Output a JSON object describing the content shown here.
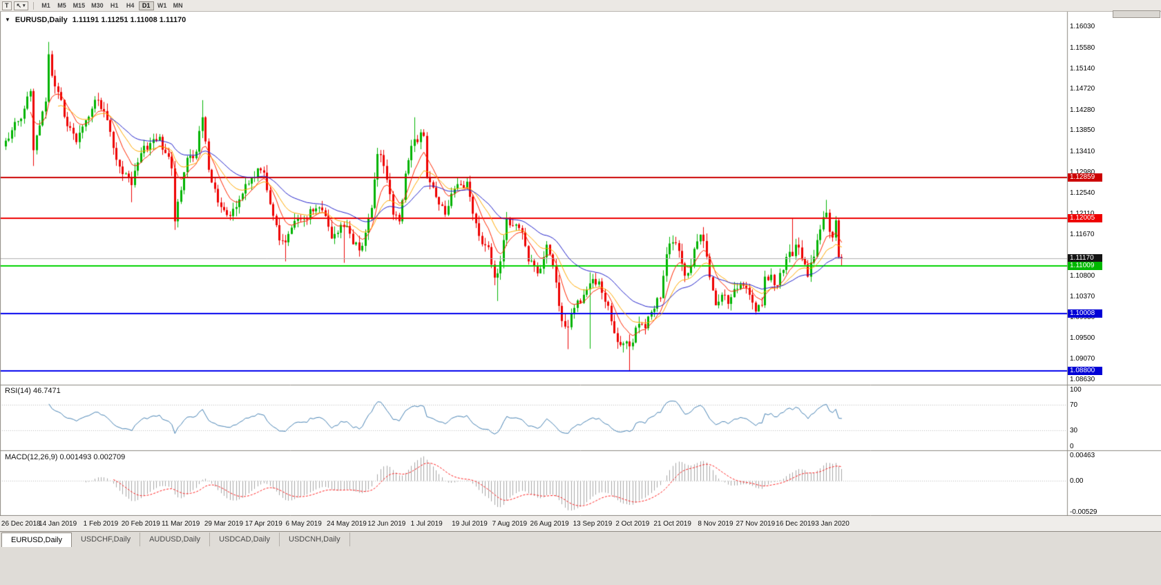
{
  "colors": {
    "window_bg": "#e7e4e0",
    "chart_bg": "#ffffff",
    "candle_up": "#00b300",
    "candle_down": "#ee0000",
    "ma_fast": "#ff2600",
    "ma_mid": "#ffaa00",
    "ma_slow": "#2222cc",
    "rsi_line": "#4682b4",
    "macd_hist": "#a6a6a6",
    "macd_signal": "#ff2020",
    "level_dotted": "#bdbdbd",
    "pane_border": "#8c8880",
    "bid_line": "#b0b0b0"
  },
  "toolbar": {
    "tool_t_label": "T",
    "cursor_icon": "↖",
    "dropdown_icon": "▾",
    "timeframes": [
      "M1",
      "M5",
      "M15",
      "M30",
      "H1",
      "H4",
      "D1",
      "W1",
      "MN"
    ],
    "active_timeframe": "D1"
  },
  "chart": {
    "title_marker_icon": "▼",
    "symbol_period": "EURUSD,Daily",
    "quotes": "1.11191 1.11251 1.11008 1.11170",
    "quote_open": "1.11191",
    "quote_high": "1.11251",
    "quote_low": "1.11008",
    "quote_close": "1.11170",
    "axis_labels": [
      "1.16030",
      "1.15580",
      "1.15140",
      "1.14720",
      "1.14280",
      "1.13850",
      "1.13410",
      "1.12980",
      "1.12540",
      "1.12110",
      "1.11670",
      "1.10800",
      "1.10370",
      "1.09930",
      "1.09500",
      "1.09070",
      "1.08630"
    ]
  },
  "chart_data": {
    "type": "candlestick",
    "symbol": "EURUSD",
    "timeframe": "Daily",
    "price_range": {
      "min": 1.0853,
      "max": 1.1626
    },
    "x_labels": [
      {
        "i": 5,
        "text": "26 Dec 2018"
      },
      {
        "i": 17,
        "text": "14 Jan 2019"
      },
      {
        "i": 31,
        "text": "1 Feb 2019"
      },
      {
        "i": 44,
        "text": "20 Feb 2019"
      },
      {
        "i": 57,
        "text": "11 Mar 2019"
      },
      {
        "i": 71,
        "text": "29 Mar 2019"
      },
      {
        "i": 84,
        "text": "17 Apr 2019"
      },
      {
        "i": 97,
        "text": "6 May 2019"
      },
      {
        "i": 111,
        "text": "24 May 2019"
      },
      {
        "i": 124,
        "text": "12 Jun 2019"
      },
      {
        "i": 137,
        "text": "1 Jul 2019"
      },
      {
        "i": 151,
        "text": "19 Jul 2019"
      },
      {
        "i": 164,
        "text": "7 Aug 2019"
      },
      {
        "i": 177,
        "text": "26 Aug 2019"
      },
      {
        "i": 191,
        "text": "13 Sep 2019"
      },
      {
        "i": 204,
        "text": "2 Oct 2019"
      },
      {
        "i": 217,
        "text": "21 Oct 2019"
      },
      {
        "i": 231,
        "text": "8 Nov 2019"
      },
      {
        "i": 244,
        "text": "27 Nov 2019"
      },
      {
        "i": 257,
        "text": "16 Dec 2019"
      },
      {
        "i": 269,
        "text": "3 Jan 2020"
      }
    ],
    "horizontal_lines": [
      {
        "price": 1.12859,
        "text": "1.12859",
        "line_color": "#cc0000",
        "badge_color": "#cc0000",
        "width": 2
      },
      {
        "price": 1.12005,
        "text": "1.12005",
        "line_color": "#ee0000",
        "badge_color": "#ee0000",
        "width": 2
      },
      {
        "price": 1.1117,
        "text": "1.11170",
        "line_color": "#b0b0b0",
        "badge_color": "#141414",
        "width": 1,
        "role": "bid"
      },
      {
        "price": 1.11009,
        "text": "1.11009",
        "line_color": "#00d400",
        "badge_color": "#00b800",
        "width": 2
      },
      {
        "price": 1.10008,
        "text": "1.10008",
        "line_color": "#0000ee",
        "badge_color": "#0000d6",
        "width": 2
      },
      {
        "price": 1.088,
        "text": "1.08800",
        "line_color": "#0000ee",
        "badge_color": "#0000d6",
        "width": 2
      }
    ],
    "candles": {
      "count": 273,
      "seed": 9,
      "noise": 0.0011,
      "wick": 0.0016,
      "anchors": [
        [
          0,
          1.1363
        ],
        [
          2,
          1.1385
        ],
        [
          4,
          1.1404
        ],
        [
          6,
          1.143
        ],
        [
          8,
          1.1467
        ],
        [
          9,
          1.1343
        ],
        [
          11,
          1.1395
        ],
        [
          13,
          1.1445
        ],
        [
          14,
          1.1544
        ],
        [
          15,
          1.1499
        ],
        [
          17,
          1.1465
        ],
        [
          19,
          1.1413
        ],
        [
          21,
          1.139
        ],
        [
          23,
          1.136
        ],
        [
          26,
          1.1406
        ],
        [
          28,
          1.143
        ],
        [
          30,
          1.1448
        ],
        [
          33,
          1.1406
        ],
        [
          36,
          1.1323
        ],
        [
          38,
          1.1293
        ],
        [
          41,
          1.127
        ],
        [
          42,
          1.13
        ],
        [
          44,
          1.1337
        ],
        [
          47,
          1.1358
        ],
        [
          50,
          1.1371
        ],
        [
          52,
          1.1337
        ],
        [
          54,
          1.1305
        ],
        [
          55,
          1.1194
        ],
        [
          56,
          1.1235
        ],
        [
          59,
          1.1327
        ],
        [
          62,
          1.134
        ],
        [
          64,
          1.1412
        ],
        [
          66,
          1.1302
        ],
        [
          68,
          1.1262
        ],
        [
          70,
          1.1224
        ],
        [
          73,
          1.1205
        ],
        [
          76,
          1.124
        ],
        [
          79,
          1.1273
        ],
        [
          82,
          1.1305
        ],
        [
          84,
          1.1296
        ],
        [
          86,
          1.123
        ],
        [
          89,
          1.1154
        ],
        [
          91,
          1.115
        ],
        [
          94,
          1.1195
        ],
        [
          97,
          1.12
        ],
        [
          100,
          1.1215
        ],
        [
          102,
          1.1223
        ],
        [
          104,
          1.1205
        ],
        [
          106,
          1.1158
        ],
        [
          108,
          1.117
        ],
        [
          110,
          1.1182
        ],
        [
          112,
          1.1168
        ],
        [
          115,
          1.1133
        ],
        [
          117,
          1.117
        ],
        [
          119,
          1.1222
        ],
        [
          121,
          1.1335
        ],
        [
          123,
          1.131
        ],
        [
          126,
          1.1208
        ],
        [
          128,
          1.1194
        ],
        [
          130,
          1.1294
        ],
        [
          133,
          1.1366
        ],
        [
          136,
          1.1373
        ],
        [
          137,
          1.1285
        ],
        [
          140,
          1.1245
        ],
        [
          143,
          1.1208
        ],
        [
          145,
          1.1252
        ],
        [
          148,
          1.127
        ],
        [
          150,
          1.1277
        ],
        [
          152,
          1.121
        ],
        [
          155,
          1.1146
        ],
        [
          157,
          1.114
        ],
        [
          159,
          1.1076
        ],
        [
          160,
          1.1085
        ],
        [
          161,
          1.111
        ],
        [
          163,
          1.12
        ],
        [
          165,
          1.1185
        ],
        [
          168,
          1.1171
        ],
        [
          170,
          1.111
        ],
        [
          173,
          1.1085
        ],
        [
          176,
          1.1145
        ],
        [
          178,
          1.11
        ],
        [
          181,
          1.0985
        ],
        [
          183,
          1.0972
        ],
        [
          186,
          1.1028
        ],
        [
          188,
          1.104
        ],
        [
          190,
          1.1064
        ],
        [
          191,
          1.1073
        ],
        [
          193,
          1.1068
        ],
        [
          196,
          1.1017
        ],
        [
          199,
          1.0941
        ],
        [
          201,
          1.0938
        ],
        [
          203,
          1.0932
        ],
        [
          206,
          1.0979
        ],
        [
          208,
          1.097
        ],
        [
          210,
          1.1004
        ],
        [
          213,
          1.1033
        ],
        [
          215,
          1.1125
        ],
        [
          217,
          1.115
        ],
        [
          219,
          1.1132
        ],
        [
          221,
          1.108
        ],
        [
          223,
          1.1102
        ],
        [
          225,
          1.1152
        ],
        [
          226,
          1.1166
        ],
        [
          228,
          1.112
        ],
        [
          231,
          1.1018
        ],
        [
          233,
          1.104
        ],
        [
          235,
          1.1021
        ],
        [
          237,
          1.1052
        ],
        [
          240,
          1.1059
        ],
        [
          242,
          1.104
        ],
        [
          244,
          1.1005
        ],
        [
          246,
          1.1018
        ],
        [
          247,
          1.1078
        ],
        [
          249,
          1.1082
        ],
        [
          251,
          1.106
        ],
        [
          253,
          1.1092
        ],
        [
          255,
          1.113
        ],
        [
          256,
          1.1121
        ],
        [
          257,
          1.1145
        ],
        [
          259,
          1.1115
        ],
        [
          261,
          1.1078
        ],
        [
          263,
          1.112
        ],
        [
          265,
          1.1177
        ],
        [
          267,
          1.1212
        ],
        [
          268,
          1.1172
        ],
        [
          269,
          1.116
        ],
        [
          270,
          1.1196
        ],
        [
          271,
          1.1119
        ],
        [
          272,
          1.1117
        ]
      ],
      "wick_overrides": [
        [
          9,
          null,
          1.131
        ],
        [
          14,
          1.157,
          null
        ],
        [
          41,
          null,
          1.1234
        ],
        [
          55,
          null,
          1.1176
        ],
        [
          64,
          1.1448,
          null
        ],
        [
          91,
          null,
          1.111
        ],
        [
          110,
          null,
          1.1107
        ],
        [
          121,
          1.1348,
          null
        ],
        [
          133,
          1.1412,
          null
        ],
        [
          159,
          null,
          1.106
        ],
        [
          160,
          null,
          1.1027
        ],
        [
          183,
          null,
          1.0926
        ],
        [
          190,
          1.1087,
          1.0927
        ],
        [
          203,
          null,
          1.0879
        ],
        [
          215,
          1.114,
          null
        ],
        [
          256,
          1.1199,
          null
        ],
        [
          267,
          1.1239,
          null
        ],
        [
          270,
          1.1205,
          null
        ]
      ],
      "last_ohlc": [
        1.11191,
        1.11251,
        1.11008,
        1.1117
      ]
    },
    "moving_averages": [
      {
        "type": "ema",
        "period": 8,
        "color": "#ff2600"
      },
      {
        "type": "ema",
        "period": 17,
        "color": "#ffaa00"
      },
      {
        "type": "ema",
        "period": 34,
        "color": "#2222cc"
      }
    ],
    "rsi": {
      "label": "RSI(14) 46.7471",
      "period": 14,
      "line_color": "#4682b4",
      "scale": {
        "min": 0,
        "max": 100
      },
      "levels": [
        {
          "value": 100,
          "text": "100",
          "line": false
        },
        {
          "value": 70,
          "text": "70",
          "line": true
        },
        {
          "value": 30,
          "text": "30",
          "line": true
        },
        {
          "value": 0,
          "text": "0",
          "line": false
        }
      ]
    },
    "macd": {
      "label": "MACD(12,26,9) 0.001493 0.002709",
      "fast_period": 12,
      "slow_period": 26,
      "signal_period": 9,
      "scale": {
        "min": -0.0057,
        "max": 0.005
      },
      "axis": [
        {
          "value": 0.00463,
          "text": "0.00463"
        },
        {
          "value": 0,
          "text": "0.00"
        },
        {
          "value": -0.00529,
          "text": "-0.00529"
        }
      ]
    }
  },
  "tabs": [
    {
      "label": "EURUSD,Daily",
      "active": true
    },
    {
      "label": "USDCHF,Daily",
      "active": false
    },
    {
      "label": "AUDUSD,Daily",
      "active": false
    },
    {
      "label": "USDCAD,Daily",
      "active": false
    },
    {
      "label": "USDCNH,Daily",
      "active": false
    }
  ]
}
